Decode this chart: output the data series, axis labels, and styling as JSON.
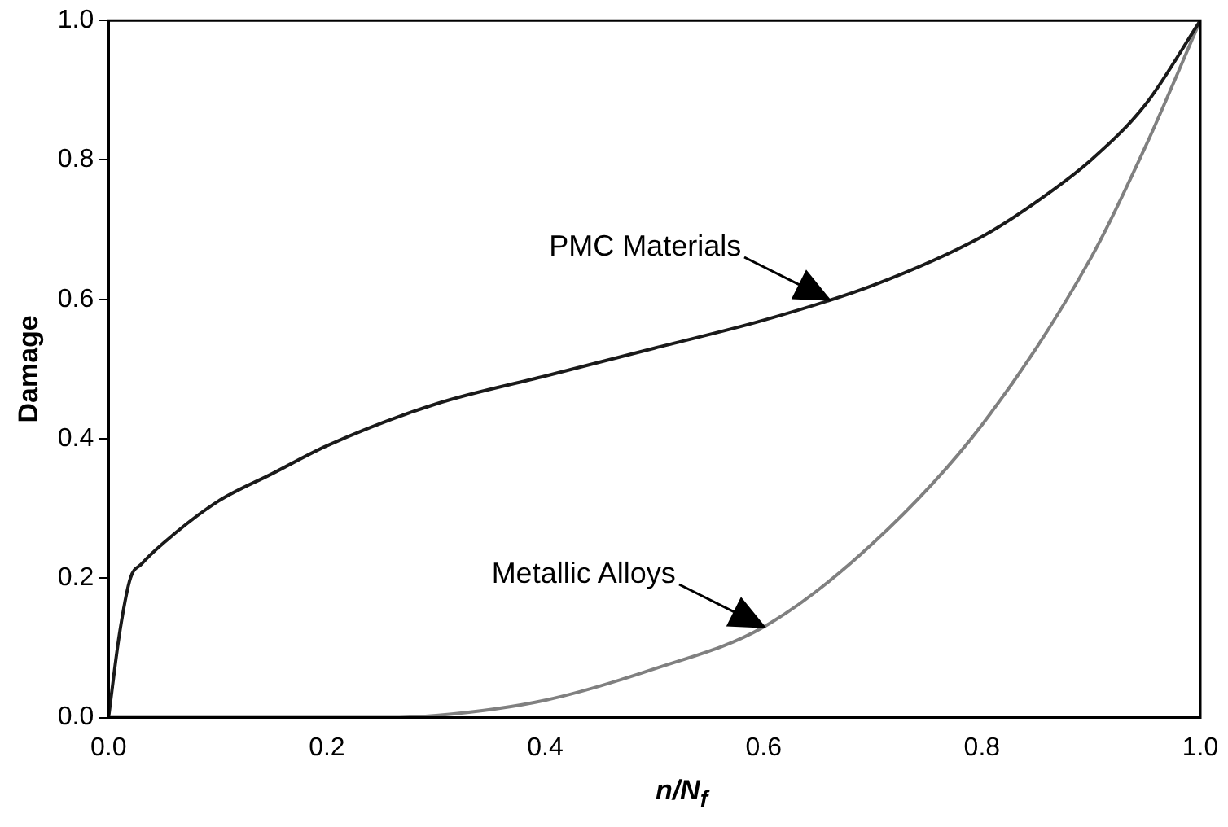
{
  "chart_data": {
    "type": "line",
    "xlabel": "n/N$_{f}$",
    "ylabel": "Damage",
    "xlim": [
      0,
      1
    ],
    "ylim": [
      0,
      1
    ],
    "xticks": [
      {
        "value": 0,
        "label": "0.0"
      },
      {
        "value": 0.2,
        "label": "0.2"
      },
      {
        "value": 0.4,
        "label": "0.4"
      },
      {
        "value": 0.6,
        "label": "0.6"
      },
      {
        "value": 0.8,
        "label": "0.8"
      },
      {
        "value": 1,
        "label": "1.0"
      }
    ],
    "yticks": [
      {
        "value": 0,
        "label": "0.0"
      },
      {
        "value": 0.2,
        "label": "0.2"
      },
      {
        "value": 0.4,
        "label": "0.4"
      },
      {
        "value": 0.6,
        "label": "0.6"
      },
      {
        "value": 0.8,
        "label": "0.8"
      },
      {
        "value": 1,
        "label": "1.0"
      }
    ],
    "grid": false,
    "legend": false,
    "marker": "none",
    "line_style": "solid",
    "series": [
      {
        "color": "#1a1a1a",
        "x": [
          0,
          0.01,
          0.02,
          0.03,
          0.05,
          0.1,
          0.15,
          0.2,
          0.3,
          0.4,
          0.5,
          0.6,
          0.7,
          0.8,
          0.85,
          0.9,
          0.95,
          1
        ],
        "values": [
          0,
          0.12,
          0.2,
          0.22,
          0.25,
          0.31,
          0.35,
          0.39,
          0.45,
          0.49,
          0.53,
          0.57,
          0.62,
          0.69,
          0.74,
          0.8,
          0.88,
          1
        ]
      },
      {
        "color": "#808080",
        "x": [
          0,
          0.2,
          0.25,
          0.3,
          0.4,
          0.5,
          0.6,
          0.7,
          0.8,
          0.9,
          0.95,
          1
        ],
        "values": [
          0,
          0,
          0,
          0.003,
          0.025,
          0.07,
          0.13,
          0.25,
          0.42,
          0.66,
          0.82,
          1
        ]
      }
    ],
    "annotations": [
      "PMC Materials",
      "Metallic Alloys"
    ]
  }
}
